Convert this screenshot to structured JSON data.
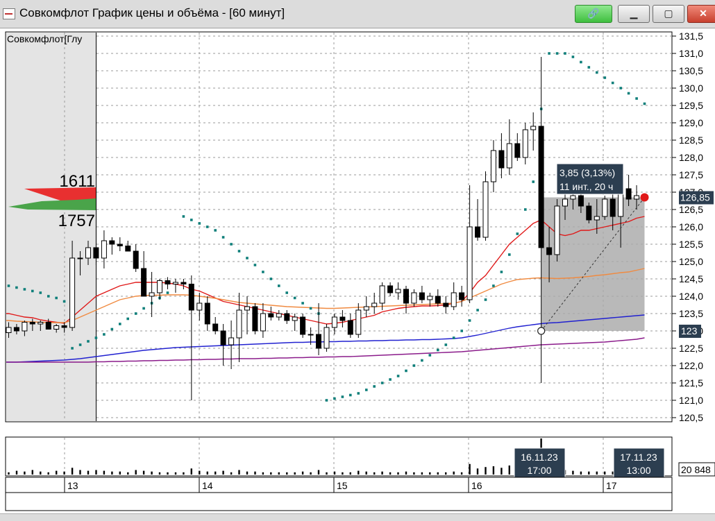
{
  "window": {
    "title": "Совкомфлот График цены и объёма - [60 минут]",
    "icons": [
      "chart-window-icon",
      "link-icon",
      "minimize-icon",
      "maximize-icon",
      "close-icon"
    ]
  },
  "panel_label": "Совкомфлот[Глу",
  "order_book": {
    "upper": "1611",
    "lower": "1757"
  },
  "measure_tooltip": {
    "line1": "3,85 (3,13%)",
    "line2": "11 инт., 20 ч"
  },
  "price_markers": {
    "last": "126,85",
    "start": "123"
  },
  "volume_label": "20 848",
  "cursor_labels": [
    {
      "date": "16.11.23",
      "time": "17:00"
    },
    {
      "date": "17.11.23",
      "time": "13:00"
    }
  ],
  "colors": {
    "sma_fast": "#e01818",
    "sma_mid": "#f08a40",
    "sma_slow": "#2020d0",
    "sma_slowest": "#8a1a8a",
    "psar": "#0e7f7a",
    "label_bg": "#2c3e50",
    "measure_box": "#a9a9a9"
  },
  "chart_data": {
    "type": "candlestick",
    "timeframe": "60 минут",
    "y_ticks": [
      "120,5",
      "121,0",
      "121,5",
      "122,0",
      "122,5",
      "123,0",
      "123,5",
      "124,0",
      "124,5",
      "125,0",
      "125,5",
      "126,0",
      "126,5",
      "127,0",
      "127,5",
      "128,0",
      "128,5",
      "129,0",
      "129,5",
      "130,0",
      "130,5",
      "131,0",
      "131,5"
    ],
    "ylim": [
      120.4,
      131.6
    ],
    "x_ticks": [
      "13",
      "14",
      "15",
      "16",
      "17"
    ],
    "grid": true,
    "candles": [
      [
        122.95,
        123.25,
        122.8,
        123.1
      ],
      [
        123.1,
        123.2,
        122.9,
        123.0
      ],
      [
        123.0,
        123.3,
        122.85,
        123.25
      ],
      [
        123.25,
        123.35,
        123.0,
        123.2
      ],
      [
        123.2,
        123.3,
        123.0,
        123.25
      ],
      [
        123.25,
        123.35,
        123.05,
        123.05
      ],
      [
        123.05,
        123.2,
        122.95,
        123.15
      ],
      [
        123.15,
        123.25,
        122.95,
        123.1
      ],
      [
        123.1,
        125.6,
        123.0,
        125.1
      ],
      [
        125.1,
        125.3,
        124.6,
        125.1
      ],
      [
        125.1,
        125.6,
        124.9,
        125.4
      ],
      [
        125.4,
        126.2,
        124.9,
        125.1
      ],
      [
        125.1,
        125.9,
        124.8,
        125.6
      ],
      [
        125.6,
        125.7,
        125.2,
        125.5
      ],
      [
        125.5,
        125.7,
        125.3,
        125.45
      ],
      [
        125.45,
        125.6,
        125.3,
        125.3
      ],
      [
        125.3,
        125.5,
        124.7,
        124.8
      ],
      [
        124.8,
        125.3,
        124.0,
        124.0
      ],
      [
        124.0,
        124.7,
        123.4,
        124.1
      ],
      [
        124.1,
        124.5,
        123.9,
        124.45
      ],
      [
        124.45,
        124.55,
        124.2,
        124.35
      ],
      [
        124.35,
        124.5,
        124.1,
        124.4
      ],
      [
        124.4,
        124.5,
        124.2,
        124.35
      ],
      [
        124.35,
        124.6,
        121.0,
        123.6
      ],
      [
        123.6,
        124.1,
        123.3,
        123.8
      ],
      [
        123.8,
        124.0,
        123.0,
        123.2
      ],
      [
        123.2,
        123.4,
        122.9,
        123.0
      ],
      [
        123.0,
        123.2,
        122.0,
        122.6
      ],
      [
        122.6,
        123.3,
        121.9,
        122.8
      ],
      [
        122.8,
        124.1,
        122.1,
        123.6
      ],
      [
        123.6,
        124.0,
        122.9,
        123.7
      ],
      [
        123.7,
        123.8,
        122.9,
        123.0
      ],
      [
        123.0,
        123.8,
        122.8,
        123.5
      ],
      [
        123.5,
        123.7,
        123.3,
        123.4
      ],
      [
        123.4,
        123.6,
        123.3,
        123.5
      ],
      [
        123.5,
        123.6,
        123.2,
        123.3
      ],
      [
        123.3,
        123.5,
        123.0,
        123.4
      ],
      [
        123.4,
        123.5,
        122.8,
        122.9
      ],
      [
        122.9,
        123.1,
        122.6,
        122.9
      ],
      [
        122.9,
        123.8,
        122.3,
        122.5
      ],
      [
        122.5,
        123.2,
        122.4,
        123.1
      ],
      [
        123.1,
        123.5,
        122.9,
        123.4
      ],
      [
        123.4,
        123.6,
        123.1,
        123.3
      ],
      [
        123.3,
        123.5,
        122.8,
        122.9
      ],
      [
        122.9,
        123.8,
        122.8,
        123.6
      ],
      [
        123.6,
        124.0,
        123.4,
        123.7
      ],
      [
        123.7,
        124.1,
        123.5,
        123.8
      ],
      [
        123.8,
        124.4,
        123.6,
        124.3
      ],
      [
        124.3,
        124.4,
        124.0,
        124.1
      ],
      [
        124.1,
        124.4,
        123.9,
        124.2
      ],
      [
        124.2,
        124.3,
        123.5,
        123.8
      ],
      [
        123.8,
        124.2,
        123.7,
        124.1
      ],
      [
        124.1,
        124.3,
        123.8,
        123.9
      ],
      [
        123.9,
        124.1,
        123.7,
        124.0
      ],
      [
        124.0,
        124.2,
        123.7,
        123.8
      ],
      [
        123.8,
        124.0,
        123.5,
        123.7
      ],
      [
        123.7,
        124.4,
        123.6,
        124.1
      ],
      [
        124.1,
        124.3,
        123.7,
        123.9
      ],
      [
        123.9,
        127.2,
        123.8,
        126.0
      ],
      [
        126.0,
        126.8,
        125.6,
        125.7
      ],
      [
        125.7,
        127.6,
        125.6,
        127.3
      ],
      [
        127.3,
        128.5,
        127.0,
        128.2
      ],
      [
        128.2,
        128.7,
        127.4,
        127.7
      ],
      [
        127.7,
        129.1,
        127.5,
        128.4
      ],
      [
        128.4,
        128.7,
        127.9,
        128.0
      ],
      [
        128.0,
        129.0,
        127.8,
        128.8
      ],
      [
        128.8,
        129.3,
        128.2,
        128.9
      ],
      [
        128.9,
        130.9,
        121.5,
        125.4
      ],
      [
        125.4,
        126.0,
        124.4,
        125.2
      ],
      [
        125.2,
        126.8,
        125.0,
        126.6
      ],
      [
        126.6,
        127.2,
        126.2,
        126.8
      ],
      [
        126.8,
        127.4,
        126.5,
        126.9
      ],
      [
        126.9,
        127.0,
        126.4,
        126.6
      ],
      [
        126.6,
        126.7,
        126.1,
        126.2
      ],
      [
        126.2,
        126.8,
        125.8,
        126.3
      ],
      [
        126.3,
        126.9,
        126.2,
        126.8
      ],
      [
        126.8,
        127.3,
        125.9,
        126.3
      ],
      [
        126.3,
        127.5,
        125.4,
        127.1
      ],
      [
        127.1,
        127.5,
        126.6,
        126.8
      ],
      [
        126.8,
        127.2,
        126.5,
        126.9
      ]
    ],
    "series": [
      {
        "type": "line",
        "style": "sma_fast",
        "values": [
          123.5,
          123.45,
          123.4,
          123.38,
          123.32,
          123.28,
          123.25,
          123.22,
          123.4,
          123.6,
          123.8,
          124.0,
          124.1,
          124.2,
          124.3,
          124.35,
          124.4,
          124.4,
          124.4,
          124.4,
          124.38,
          124.35,
          124.3,
          124.2,
          124.15,
          124.05,
          123.95,
          123.85,
          123.8,
          123.75,
          123.7,
          123.65,
          123.6,
          123.55,
          123.5,
          123.45,
          123.4,
          123.35,
          123.3,
          123.25,
          123.2,
          123.22,
          123.25,
          123.3,
          123.35,
          123.4,
          123.45,
          123.55,
          123.6,
          123.65,
          123.68,
          123.7,
          123.72,
          123.72,
          123.73,
          123.75,
          123.8,
          123.85,
          124.1,
          124.4,
          124.6,
          124.9,
          125.2,
          125.5,
          125.7,
          125.9,
          126.1,
          126.2,
          126.0,
          125.8,
          125.75,
          125.8,
          125.9,
          125.9,
          125.95,
          126.0,
          126.05,
          126.1,
          126.15,
          126.25,
          126.3
        ]
      },
      {
        "type": "line",
        "style": "sma_mid",
        "values": [
          123.3,
          123.28,
          123.27,
          123.26,
          123.25,
          123.24,
          123.24,
          123.24,
          123.3,
          123.4,
          123.5,
          123.6,
          123.7,
          123.8,
          123.9,
          123.95,
          124.0,
          124.02,
          124.03,
          124.03,
          124.04,
          124.04,
          124.04,
          124.03,
          124.0,
          123.97,
          123.94,
          123.9,
          123.86,
          123.82,
          123.8,
          123.78,
          123.76,
          123.74,
          123.72,
          123.7,
          123.69,
          123.68,
          123.67,
          123.66,
          123.65,
          123.65,
          123.66,
          123.67,
          123.68,
          123.69,
          123.7,
          123.71,
          123.72,
          123.73,
          123.74,
          123.75,
          123.76,
          123.77,
          123.78,
          123.79,
          123.8,
          123.85,
          123.95,
          124.05,
          124.15,
          124.25,
          124.35,
          124.42,
          124.48,
          124.5,
          124.52,
          124.53,
          124.52,
          124.51,
          124.52,
          124.53,
          124.55,
          124.57,
          124.6,
          124.62,
          124.65,
          124.68,
          124.7,
          124.75,
          124.8
        ]
      },
      {
        "type": "line",
        "style": "sma_slow",
        "values": [
          122.1,
          122.1,
          122.11,
          122.12,
          122.13,
          122.14,
          122.15,
          122.16,
          122.18,
          122.2,
          122.23,
          122.26,
          122.29,
          122.32,
          122.35,
          122.38,
          122.41,
          122.44,
          122.46,
          122.48,
          122.5,
          122.52,
          122.53,
          122.54,
          122.55,
          122.56,
          122.57,
          122.58,
          122.59,
          122.6,
          122.61,
          122.62,
          122.63,
          122.64,
          122.65,
          122.66,
          122.67,
          122.67,
          122.68,
          122.68,
          122.69,
          122.69,
          122.7,
          122.7,
          122.71,
          122.71,
          122.72,
          122.72,
          122.73,
          122.73,
          122.74,
          122.74,
          122.75,
          122.75,
          122.76,
          122.77,
          122.78,
          122.8,
          122.84,
          122.88,
          122.93,
          122.98,
          123.03,
          123.08,
          123.12,
          123.15,
          123.18,
          123.21,
          123.23,
          123.24,
          123.26,
          123.28,
          123.3,
          123.32,
          123.34,
          123.36,
          123.38,
          123.4,
          123.42,
          123.44,
          123.46
        ]
      },
      {
        "type": "line",
        "style": "sma_slowest",
        "values": [
          122.1,
          122.1,
          122.1,
          122.1,
          122.1,
          122.1,
          122.1,
          122.1,
          122.1,
          122.1,
          122.1,
          122.11,
          122.11,
          122.12,
          122.12,
          122.13,
          122.13,
          122.14,
          122.14,
          122.15,
          122.15,
          122.16,
          122.16,
          122.17,
          122.17,
          122.18,
          122.18,
          122.19,
          122.19,
          122.2,
          122.2,
          122.2,
          122.21,
          122.21,
          122.22,
          122.22,
          122.23,
          122.23,
          122.24,
          122.24,
          122.25,
          122.25,
          122.26,
          122.26,
          122.27,
          122.28,
          122.29,
          122.3,
          122.31,
          122.32,
          122.33,
          122.34,
          122.35,
          122.36,
          122.37,
          122.38,
          122.39,
          122.4,
          122.42,
          122.44,
          122.46,
          122.48,
          122.5,
          122.52,
          122.54,
          122.56,
          122.58,
          122.6,
          122.61,
          122.62,
          122.63,
          122.64,
          122.65,
          122.66,
          122.67,
          122.68,
          122.7,
          122.72,
          122.74,
          122.76,
          122.8
        ]
      },
      {
        "type": "scatter",
        "style": "psar",
        "values": [
          124.3,
          124.25,
          124.2,
          124.15,
          124.1,
          124.0,
          123.95,
          123.85,
          122.5,
          122.6,
          122.7,
          122.8,
          122.9,
          123.05,
          123.2,
          123.35,
          123.5,
          123.65,
          123.8,
          123.95,
          124.1,
          null,
          126.3,
          126.2,
          126.1,
          126.0,
          125.9,
          125.7,
          125.5,
          125.3,
          125.1,
          124.9,
          124.7,
          124.5,
          124.3,
          124.1,
          123.95,
          123.8,
          123.65,
          123.5,
          121.0,
          121.05,
          121.1,
          121.15,
          121.2,
          121.3,
          121.4,
          121.5,
          121.6,
          121.7,
          121.85,
          122.0,
          122.15,
          122.3,
          122.45,
          122.6,
          122.8,
          123.0,
          123.3,
          123.6,
          123.9,
          124.3,
          124.7,
          125.2,
          125.8,
          126.5,
          127.3,
          129.4,
          131.0,
          131.0,
          131.0,
          130.9,
          130.75,
          130.6,
          130.45,
          130.3,
          130.15,
          130.0,
          129.85,
          129.7,
          129.55
        ]
      }
    ],
    "volume": [
      3,
      5,
      4,
      6,
      4,
      3,
      5,
      4,
      9,
      6,
      5,
      6,
      5,
      4,
      4,
      3,
      6,
      5,
      4,
      3,
      3,
      3,
      3,
      8,
      5,
      4,
      4,
      5,
      3,
      6,
      4,
      4,
      3,
      3,
      3,
      3,
      3,
      4,
      3,
      6,
      3,
      4,
      3,
      3,
      5,
      4,
      3,
      4,
      3,
      3,
      4,
      3,
      3,
      3,
      3,
      3,
      4,
      3,
      14,
      8,
      10,
      11,
      9,
      12,
      8,
      10,
      9,
      48,
      12,
      8,
      6,
      5,
      4,
      4,
      4,
      4,
      4,
      5,
      4,
      4,
      5
    ],
    "measure": {
      "from_price": 123.0,
      "to_price": 126.85,
      "change": "3,85 (3,13%)",
      "bars": "11 инт., 20 ч"
    }
  }
}
